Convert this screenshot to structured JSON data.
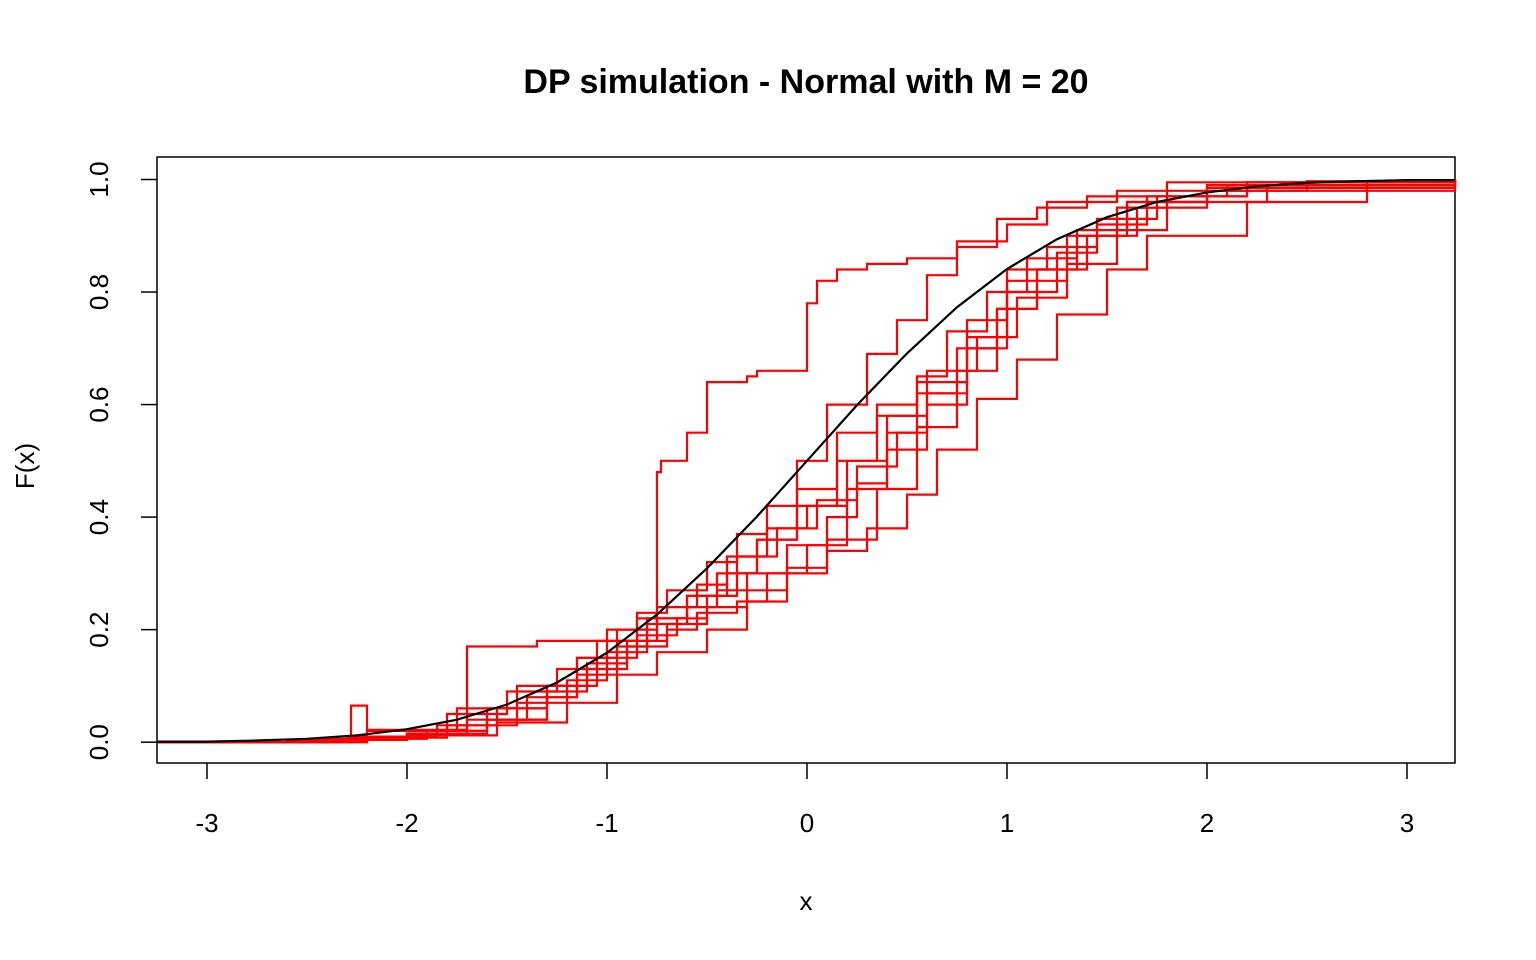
{
  "chart_data": {
    "type": "line",
    "title": "DP simulation - Normal with M = 20",
    "xlabel": "x",
    "ylabel": "F(x)",
    "xlim": [
      -3.25,
      3.24
    ],
    "ylim": [
      -0.037,
      1.04
    ],
    "xticks": [
      -3,
      -2,
      -1,
      0,
      1,
      2,
      3
    ],
    "xtick_labels": [
      "-3",
      "-2",
      "-1",
      "0",
      "1",
      "2",
      "3"
    ],
    "yticks": [
      0,
      0.2,
      0.4,
      0.6,
      0.8,
      1
    ],
    "ytick_labels": [
      "0.0",
      "0.2",
      "0.4",
      "0.6",
      "0.8",
      "1.0"
    ],
    "grid": false,
    "legend": "none",
    "true_cdf": {
      "color": "#000000",
      "x": [
        -3.25,
        -3.0,
        -2.75,
        -2.5,
        -2.25,
        -2.0,
        -1.75,
        -1.5,
        -1.25,
        -1.0,
        -0.75,
        -0.5,
        -0.25,
        0.0,
        0.25,
        0.5,
        0.75,
        1.0,
        1.25,
        1.5,
        1.75,
        2.0,
        2.25,
        2.5,
        2.75,
        3.0,
        3.24
      ],
      "y": [
        0.001,
        0.001,
        0.003,
        0.006,
        0.012,
        0.023,
        0.04,
        0.067,
        0.106,
        0.159,
        0.227,
        0.309,
        0.401,
        0.5,
        0.599,
        0.691,
        0.773,
        0.841,
        0.894,
        0.933,
        0.96,
        0.977,
        0.988,
        0.994,
        0.997,
        0.999,
        0.999
      ]
    },
    "series_color": "#ff0000",
    "series": [
      {
        "x": [
          -3.25,
          -2.28,
          -2.2,
          -1.7,
          -1.35,
          -0.75,
          -0.73,
          -0.6,
          -0.5,
          -0.3,
          -0.25,
          -0.2,
          0.0,
          0.05,
          0.15,
          0.3,
          0.5,
          0.75,
          0.95,
          1.15,
          1.4,
          2.2,
          3.24
        ],
        "y": [
          0.0,
          0.065,
          0.022,
          0.17,
          0.18,
          0.48,
          0.5,
          0.55,
          0.64,
          0.65,
          0.66,
          0.66,
          0.78,
          0.82,
          0.84,
          0.85,
          0.86,
          0.88,
          0.93,
          0.95,
          0.97,
          0.995,
          1.0
        ]
      },
      {
        "x": [
          -3.25,
          -2.5,
          -2.2,
          -1.9,
          -1.6,
          -1.3,
          -1.15,
          -1.0,
          -0.85,
          -0.7,
          -0.5,
          -0.35,
          -0.2,
          -0.05,
          0.1,
          0.3,
          0.45,
          0.6,
          0.75,
          1.0,
          1.2,
          1.55,
          1.8,
          3.24
        ],
        "y": [
          0.0,
          0.003,
          0.01,
          0.02,
          0.04,
          0.08,
          0.15,
          0.2,
          0.23,
          0.27,
          0.32,
          0.37,
          0.42,
          0.5,
          0.6,
          0.69,
          0.75,
          0.83,
          0.89,
          0.92,
          0.96,
          0.98,
          0.995,
          1.0
        ]
      },
      {
        "x": [
          -3.25,
          -2.4,
          -2.0,
          -1.6,
          -1.3,
          -1.1,
          -0.9,
          -0.7,
          -0.55,
          -0.35,
          -0.2,
          0.0,
          0.2,
          0.4,
          0.55,
          0.75,
          0.95,
          1.15,
          1.35,
          1.6,
          2.0,
          3.24
        ],
        "y": [
          0.0,
          0.005,
          0.015,
          0.04,
          0.09,
          0.13,
          0.17,
          0.2,
          0.23,
          0.25,
          0.3,
          0.35,
          0.45,
          0.55,
          0.62,
          0.7,
          0.77,
          0.84,
          0.9,
          0.96,
          0.99,
          1.0
        ]
      },
      {
        "x": [
          -3.25,
          -2.3,
          -1.8,
          -1.45,
          -1.2,
          -1.0,
          -0.8,
          -0.6,
          -0.45,
          -0.3,
          -0.1,
          0.1,
          0.25,
          0.4,
          0.6,
          0.8,
          1.0,
          1.3,
          1.55,
          1.8,
          2.5,
          3.24
        ],
        "y": [
          0.0,
          0.008,
          0.03,
          0.07,
          0.11,
          0.16,
          0.21,
          0.24,
          0.27,
          0.3,
          0.35,
          0.4,
          0.46,
          0.52,
          0.6,
          0.72,
          0.82,
          0.9,
          0.95,
          0.98,
          0.997,
          1.0
        ]
      },
      {
        "x": [
          -3.25,
          -2.2,
          -1.8,
          -1.5,
          -1.25,
          -1.05,
          -0.85,
          -0.6,
          -0.4,
          -0.25,
          -0.05,
          0.15,
          0.35,
          0.55,
          0.7,
          0.9,
          1.1,
          1.35,
          1.6,
          2.0,
          3.24
        ],
        "y": [
          0.0,
          0.02,
          0.05,
          0.09,
          0.13,
          0.18,
          0.22,
          0.26,
          0.3,
          0.36,
          0.42,
          0.5,
          0.58,
          0.65,
          0.73,
          0.8,
          0.86,
          0.91,
          0.96,
          0.985,
          1.0
        ]
      },
      {
        "x": [
          -3.25,
          -2.6,
          -2.0,
          -1.55,
          -1.2,
          -0.95,
          -0.75,
          -0.5,
          -0.3,
          -0.1,
          0.1,
          0.3,
          0.5,
          0.65,
          0.85,
          1.05,
          1.25,
          1.5,
          1.7,
          2.2,
          2.8,
          3.24
        ],
        "y": [
          0.0,
          0.004,
          0.012,
          0.035,
          0.07,
          0.12,
          0.16,
          0.2,
          0.25,
          0.3,
          0.34,
          0.38,
          0.44,
          0.52,
          0.61,
          0.68,
          0.76,
          0.84,
          0.9,
          0.96,
          0.995,
          1.0
        ]
      },
      {
        "x": [
          -3.25,
          -2.4,
          -1.9,
          -1.6,
          -1.3,
          -1.05,
          -0.85,
          -0.65,
          -0.5,
          -0.35,
          -0.15,
          0.05,
          0.25,
          0.45,
          0.6,
          0.8,
          1.0,
          1.25,
          1.45,
          1.75,
          2.2,
          3.24
        ],
        "y": [
          0.0,
          0.006,
          0.02,
          0.06,
          0.1,
          0.15,
          0.19,
          0.22,
          0.26,
          0.33,
          0.38,
          0.43,
          0.49,
          0.55,
          0.62,
          0.7,
          0.8,
          0.87,
          0.93,
          0.97,
          0.995,
          1.0
        ]
      },
      {
        "x": [
          -3.25,
          -2.5,
          -2.0,
          -1.7,
          -1.4,
          -1.15,
          -0.95,
          -0.8,
          -0.6,
          -0.45,
          -0.25,
          -0.05,
          0.15,
          0.35,
          0.55,
          0.8,
          1.0,
          1.2,
          1.45,
          1.7,
          2.1,
          3.24
        ],
        "y": [
          0.0,
          0.004,
          0.015,
          0.04,
          0.08,
          0.12,
          0.17,
          0.22,
          0.26,
          0.3,
          0.36,
          0.45,
          0.55,
          0.6,
          0.64,
          0.75,
          0.84,
          0.88,
          0.92,
          0.97,
          0.99,
          1.0
        ]
      },
      {
        "x": [
          -3.25,
          -2.3,
          -1.85,
          -1.55,
          -1.3,
          -1.1,
          -0.9,
          -0.7,
          -0.5,
          -0.3,
          -0.1,
          0.1,
          0.35,
          0.55,
          0.75,
          0.95,
          1.15,
          1.4,
          1.65,
          2.0,
          3.24
        ],
        "y": [
          0.0,
          0.01,
          0.03,
          0.06,
          0.1,
          0.14,
          0.18,
          0.21,
          0.24,
          0.27,
          0.31,
          0.36,
          0.45,
          0.56,
          0.66,
          0.77,
          0.84,
          0.9,
          0.95,
          0.98,
          1.0
        ]
      },
      {
        "x": [
          -3.25,
          -2.2,
          -1.75,
          -1.45,
          -1.15,
          -0.95,
          -0.75,
          -0.55,
          -0.4,
          -0.2,
          0.0,
          0.2,
          0.4,
          0.6,
          0.85,
          1.05,
          1.3,
          1.55,
          1.8,
          2.3,
          3.24
        ],
        "y": [
          0.0,
          0.02,
          0.06,
          0.1,
          0.15,
          0.2,
          0.24,
          0.28,
          0.33,
          0.38,
          0.42,
          0.5,
          0.58,
          0.66,
          0.72,
          0.79,
          0.85,
          0.91,
          0.96,
          0.99,
          1.0
        ]
      }
    ]
  }
}
